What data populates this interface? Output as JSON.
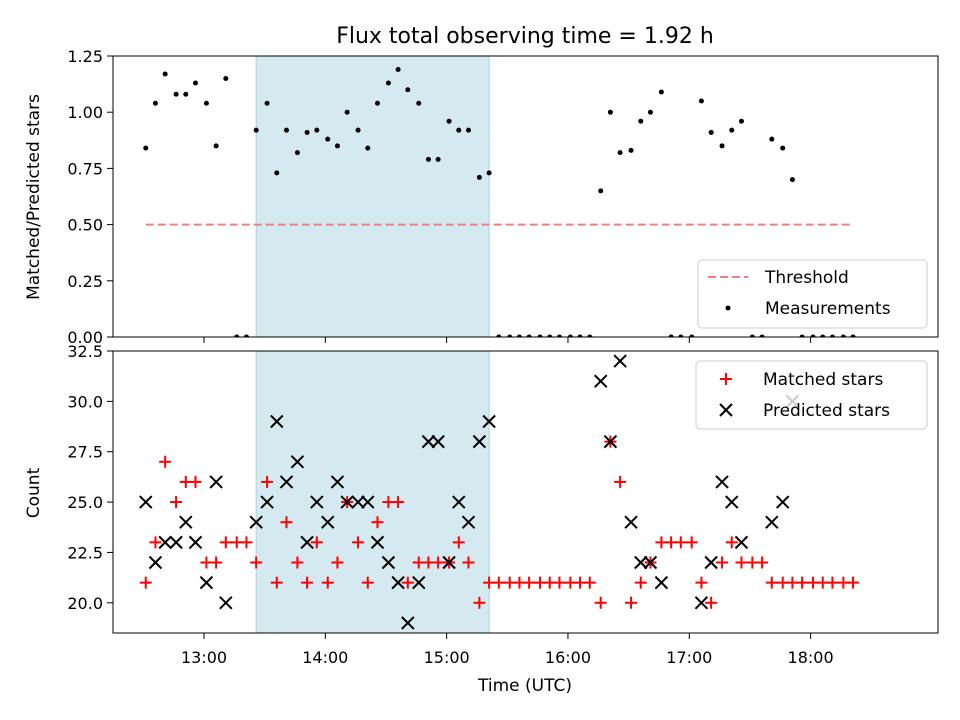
{
  "title": "Flux total observing time = 1.92 h",
  "chart_data": [
    {
      "type": "scatter",
      "ylabel": "Matched/Predicted stars",
      "xlabel": "",
      "ylim": [
        0,
        1.25
      ],
      "yticks": [
        "0.00",
        "0.25",
        "0.50",
        "0.75",
        "1.00",
        "1.25"
      ],
      "xlim_hours": [
        12.25,
        19.05
      ],
      "xticks_hours": [
        13,
        14,
        15,
        16,
        17,
        18
      ],
      "shaded_interval_hours": [
        13.43,
        15.35
      ],
      "shade_color": "#d4eaf0",
      "legend": {
        "placement": "lower right",
        "entries": [
          "Threshold",
          "Measurements"
        ]
      },
      "threshold": {
        "name": "Threshold",
        "value": 0.5,
        "x_start": 12.52,
        "x_end": 18.35,
        "color": "#f08080"
      },
      "series": [
        {
          "name": "Measurements",
          "color": "#000000",
          "points": [
            [
              12.52,
              0.84
            ],
            [
              12.6,
              1.04
            ],
            [
              12.68,
              1.17
            ],
            [
              12.77,
              1.08
            ],
            [
              12.85,
              1.08
            ],
            [
              12.93,
              1.13
            ],
            [
              13.02,
              1.04
            ],
            [
              13.1,
              0.85
            ],
            [
              13.18,
              1.15
            ],
            [
              13.27,
              0.0
            ],
            [
              13.35,
              0.0
            ],
            [
              13.43,
              0.92
            ],
            [
              13.52,
              1.04
            ],
            [
              13.6,
              0.73
            ],
            [
              13.68,
              0.92
            ],
            [
              13.77,
              0.82
            ],
            [
              13.85,
              0.91
            ],
            [
              13.93,
              0.92
            ],
            [
              14.02,
              0.88
            ],
            [
              14.1,
              0.85
            ],
            [
              14.18,
              1.0
            ],
            [
              14.27,
              0.92
            ],
            [
              14.35,
              0.84
            ],
            [
              14.43,
              1.04
            ],
            [
              14.52,
              1.13
            ],
            [
              14.6,
              1.19
            ],
            [
              14.68,
              1.1
            ],
            [
              14.77,
              1.04
            ],
            [
              14.85,
              0.79
            ],
            [
              14.93,
              0.79
            ],
            [
              15.02,
              0.96
            ],
            [
              15.1,
              0.92
            ],
            [
              15.18,
              0.92
            ],
            [
              15.27,
              0.71
            ],
            [
              15.35,
              0.73
            ],
            [
              15.43,
              0.0
            ],
            [
              15.52,
              0.0
            ],
            [
              15.6,
              0.0
            ],
            [
              15.68,
              0.0
            ],
            [
              15.77,
              0.0
            ],
            [
              15.85,
              0.0
            ],
            [
              15.93,
              0.0
            ],
            [
              16.02,
              0.0
            ],
            [
              16.1,
              0.0
            ],
            [
              16.18,
              0.0
            ],
            [
              16.27,
              0.65
            ],
            [
              16.35,
              1.0
            ],
            [
              16.43,
              0.82
            ],
            [
              16.52,
              0.83
            ],
            [
              16.6,
              0.96
            ],
            [
              16.68,
              1.0
            ],
            [
              16.77,
              1.09
            ],
            [
              16.85,
              0.0
            ],
            [
              16.93,
              0.0
            ],
            [
              17.02,
              0.0
            ],
            [
              17.1,
              1.05
            ],
            [
              17.18,
              0.91
            ],
            [
              17.27,
              0.85
            ],
            [
              17.35,
              0.92
            ],
            [
              17.43,
              0.96
            ],
            [
              17.52,
              0.0
            ],
            [
              17.6,
              0.0
            ],
            [
              17.68,
              0.88
            ],
            [
              17.77,
              0.84
            ],
            [
              17.85,
              0.7
            ],
            [
              17.93,
              0.0
            ],
            [
              18.02,
              0.0
            ],
            [
              18.1,
              0.0
            ],
            [
              18.18,
              0.0
            ],
            [
              18.27,
              0.0
            ],
            [
              18.35,
              0.0
            ]
          ]
        }
      ]
    },
    {
      "type": "scatter",
      "ylabel": "Count",
      "xlabel": "Time (UTC)",
      "ylim": [
        18.5,
        32.5
      ],
      "yticks": [
        "20.0",
        "22.5",
        "25.0",
        "27.5",
        "30.0",
        "32.5"
      ],
      "xlim_hours": [
        12.25,
        19.05
      ],
      "xticks_hours": [
        13,
        14,
        15,
        16,
        17,
        18
      ],
      "xtick_labels": [
        "13:00",
        "14:00",
        "15:00",
        "16:00",
        "17:00",
        "18:00"
      ],
      "shaded_interval_hours": [
        13.43,
        15.35
      ],
      "legend": {
        "placement": "upper right",
        "entries": [
          "Matched stars",
          "Predicted stars"
        ]
      },
      "series": [
        {
          "name": "Matched stars",
          "marker": "+",
          "color": "#ff0000",
          "points": [
            [
              12.52,
              21
            ],
            [
              12.6,
              23
            ],
            [
              12.68,
              27
            ],
            [
              12.77,
              25
            ],
            [
              12.85,
              26
            ],
            [
              12.93,
              26
            ],
            [
              13.02,
              22
            ],
            [
              13.1,
              22
            ],
            [
              13.18,
              23
            ],
            [
              13.27,
              23
            ],
            [
              13.35,
              23
            ],
            [
              13.43,
              22
            ],
            [
              13.52,
              26
            ],
            [
              13.6,
              21
            ],
            [
              13.68,
              24
            ],
            [
              13.77,
              22
            ],
            [
              13.85,
              21
            ],
            [
              13.93,
              23
            ],
            [
              14.02,
              21
            ],
            [
              14.1,
              22
            ],
            [
              14.18,
              25
            ],
            [
              14.27,
              23
            ],
            [
              14.35,
              21
            ],
            [
              14.43,
              24
            ],
            [
              14.52,
              25
            ],
            [
              14.6,
              25
            ],
            [
              14.68,
              21
            ],
            [
              14.77,
              22
            ],
            [
              14.85,
              22
            ],
            [
              14.93,
              22
            ],
            [
              15.02,
              22
            ],
            [
              15.1,
              23
            ],
            [
              15.18,
              22
            ],
            [
              15.27,
              20
            ],
            [
              15.35,
              21
            ],
            [
              15.43,
              21
            ],
            [
              15.52,
              21
            ],
            [
              15.6,
              21
            ],
            [
              15.68,
              21
            ],
            [
              15.77,
              21
            ],
            [
              15.85,
              21
            ],
            [
              15.93,
              21
            ],
            [
              16.02,
              21
            ],
            [
              16.1,
              21
            ],
            [
              16.18,
              21
            ],
            [
              16.27,
              20
            ],
            [
              16.35,
              28
            ],
            [
              16.43,
              26
            ],
            [
              16.52,
              20
            ],
            [
              16.6,
              21
            ],
            [
              16.68,
              22
            ],
            [
              16.77,
              23
            ],
            [
              16.85,
              23
            ],
            [
              16.93,
              23
            ],
            [
              17.02,
              23
            ],
            [
              17.1,
              21
            ],
            [
              17.18,
              20
            ],
            [
              17.27,
              22
            ],
            [
              17.35,
              23
            ],
            [
              17.43,
              22
            ],
            [
              17.52,
              22
            ],
            [
              17.6,
              22
            ],
            [
              17.68,
              21
            ],
            [
              17.77,
              21
            ],
            [
              17.85,
              21
            ],
            [
              17.93,
              21
            ],
            [
              18.02,
              21
            ],
            [
              18.1,
              21
            ],
            [
              18.18,
              21
            ],
            [
              18.27,
              21
            ],
            [
              18.35,
              21
            ]
          ]
        },
        {
          "name": "Predicted stars",
          "marker": "x",
          "color": "#000000",
          "points": [
            [
              12.52,
              25
            ],
            [
              12.6,
              22
            ],
            [
              12.68,
              23
            ],
            [
              12.77,
              23
            ],
            [
              12.85,
              24
            ],
            [
              12.93,
              23
            ],
            [
              13.02,
              21
            ],
            [
              13.1,
              26
            ],
            [
              13.18,
              20
            ],
            [
              13.43,
              24
            ],
            [
              13.52,
              25
            ],
            [
              13.6,
              29
            ],
            [
              13.68,
              26
            ],
            [
              13.77,
              27
            ],
            [
              13.85,
              23
            ],
            [
              13.93,
              25
            ],
            [
              14.02,
              24
            ],
            [
              14.1,
              26
            ],
            [
              14.18,
              25
            ],
            [
              14.27,
              25
            ],
            [
              14.35,
              25
            ],
            [
              14.43,
              23
            ],
            [
              14.52,
              22
            ],
            [
              14.6,
              21
            ],
            [
              14.68,
              19
            ],
            [
              14.77,
              21
            ],
            [
              14.85,
              28
            ],
            [
              14.93,
              28
            ],
            [
              15.02,
              22
            ],
            [
              15.1,
              25
            ],
            [
              15.18,
              24
            ],
            [
              15.27,
              28
            ],
            [
              15.35,
              29
            ],
            [
              16.27,
              31
            ],
            [
              16.35,
              28
            ],
            [
              16.43,
              32
            ],
            [
              16.52,
              24
            ],
            [
              16.6,
              22
            ],
            [
              16.68,
              22
            ],
            [
              16.77,
              21
            ],
            [
              17.1,
              20
            ],
            [
              17.18,
              22
            ],
            [
              17.27,
              26
            ],
            [
              17.35,
              25
            ],
            [
              17.43,
              23
            ],
            [
              17.68,
              24
            ],
            [
              17.77,
              25
            ],
            [
              17.85,
              30
            ]
          ]
        }
      ]
    }
  ]
}
